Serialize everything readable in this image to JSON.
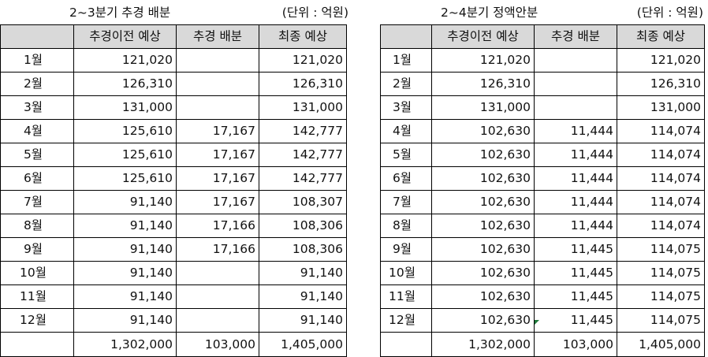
{
  "left": {
    "title": "2~3분기 추경 배분",
    "unit": "(단위 : 억원)",
    "headers": [
      "",
      "추경이전 예상",
      "추경 배분",
      "최종 예상"
    ],
    "rows": [
      [
        "1월",
        "121,020",
        "",
        "121,020"
      ],
      [
        "2월",
        "126,310",
        "",
        "126,310"
      ],
      [
        "3월",
        "131,000",
        "",
        "131,000"
      ],
      [
        "4월",
        "125,610",
        "17,167",
        "142,777"
      ],
      [
        "5월",
        "125,610",
        "17,167",
        "142,777"
      ],
      [
        "6월",
        "125,610",
        "17,167",
        "142,777"
      ],
      [
        "7월",
        "91,140",
        "17,167",
        "108,307"
      ],
      [
        "8월",
        "91,140",
        "17,166",
        "108,306"
      ],
      [
        "9월",
        "91,140",
        "17,166",
        "108,306"
      ],
      [
        "10월",
        "91,140",
        "",
        "91,140"
      ],
      [
        "11월",
        "91,140",
        "",
        "91,140"
      ],
      [
        "12월",
        "91,140",
        "",
        "91,140"
      ]
    ],
    "total": [
      "",
      "1,302,000",
      "103,000",
      "1,405,000"
    ]
  },
  "right": {
    "title": "2~4분기 정액안분",
    "unit": "(단위 : 억원)",
    "headers": [
      "",
      "추경이전 예상",
      "추경 배분",
      "최종 예상"
    ],
    "rows": [
      [
        "1월",
        "121,020",
        "",
        "121,020"
      ],
      [
        "2월",
        "126,310",
        "",
        "126,310"
      ],
      [
        "3월",
        "131,000",
        "",
        "131,000"
      ],
      [
        "4월",
        "102,630",
        "11,444",
        "114,074"
      ],
      [
        "5월",
        "102,630",
        "11,444",
        "114,074"
      ],
      [
        "6월",
        "102,630",
        "11,444",
        "114,074"
      ],
      [
        "7월",
        "102,630",
        "11,444",
        "114,074"
      ],
      [
        "8월",
        "102,630",
        "11,444",
        "114,074"
      ],
      [
        "9월",
        "102,630",
        "11,445",
        "114,075"
      ],
      [
        "10월",
        "102,630",
        "11,445",
        "114,075"
      ],
      [
        "11월",
        "102,630",
        "11,445",
        "114,075"
      ],
      [
        "12월",
        "102,630",
        "11,445",
        "114,075"
      ]
    ],
    "total": [
      "",
      "1,302,000",
      "103,000",
      "1,405,000"
    ]
  }
}
